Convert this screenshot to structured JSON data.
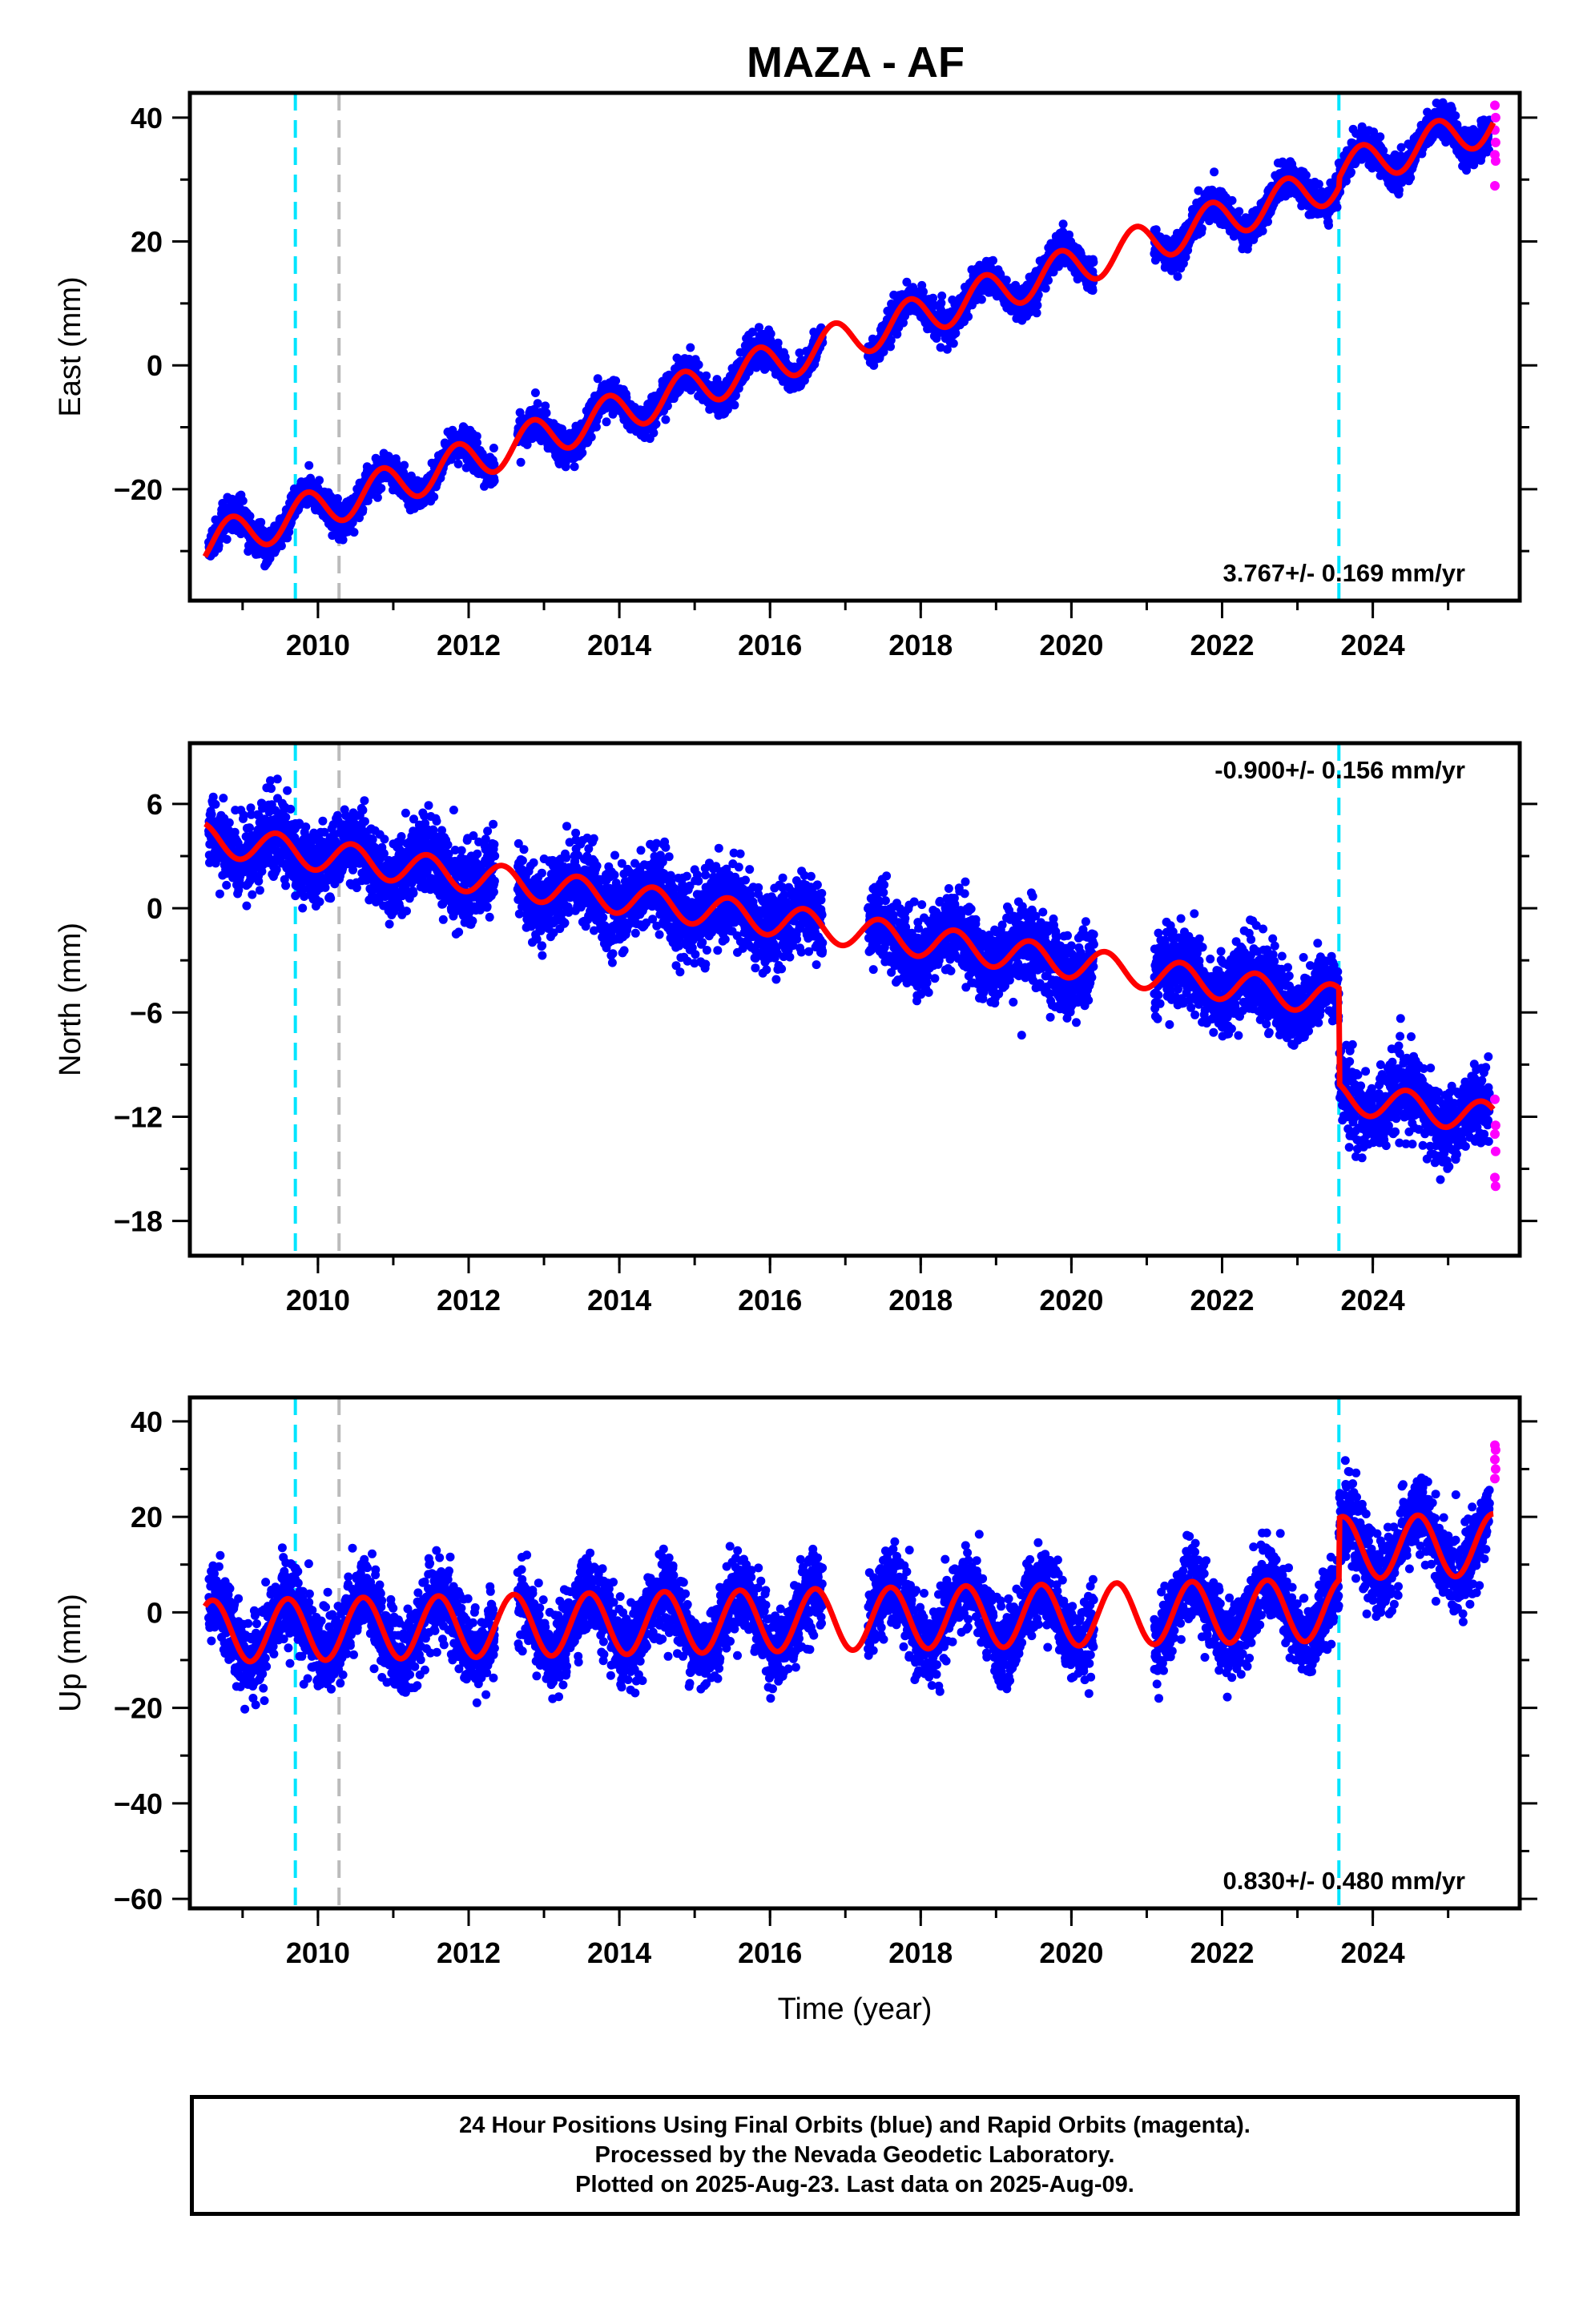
{
  "title": "MAZA - AF",
  "colors": {
    "final_orbits": "#0000ff",
    "rapid_orbits": "#ff00ff",
    "model": "#ff0000",
    "event_cyan": "#00e5ff",
    "event_gray": "#bbbbbb"
  },
  "chart_data": [
    {
      "type": "scatter",
      "name": "east",
      "ylabel": "East (mm)",
      "xlabel": "",
      "xlim": [
        2008.3,
        2025.95
      ],
      "ylim": [
        -38,
        44
      ],
      "yticks": [
        -20,
        0,
        20,
        40
      ],
      "xticks": [
        2010,
        2012,
        2014,
        2016,
        2018,
        2020,
        2022,
        2024
      ],
      "velocity_label": "3.767+/- 0.169 mm/yr",
      "velocity_position": "bottom-right",
      "event_lines": [
        {
          "x": 2009.7,
          "color": "cyan"
        },
        {
          "x": 2010.28,
          "color": "gray"
        },
        {
          "x": 2023.55,
          "color": "cyan"
        }
      ],
      "model": {
        "x0": 2008.5,
        "x1": 2025.6,
        "y_start": -29,
        "trend": 3.9,
        "annual_amp": 3.2,
        "phase": -0.1,
        "offsets": [
          {
            "x": 2023.55,
            "dy": 1.5
          }
        ]
      },
      "gaps": [
        [
          2012.35,
          2012.65
        ],
        [
          2016.7,
          2017.3
        ],
        [
          2020.3,
          2021.1
        ]
      ],
      "scatter_noise": 1.3,
      "rapid_values": [
        42,
        40,
        38,
        36,
        34,
        33,
        29
      ]
    },
    {
      "type": "scatter",
      "name": "north",
      "ylabel": "North (mm)",
      "xlabel": "",
      "xlim": [
        2008.3,
        2025.95
      ],
      "ylim": [
        -20,
        9.5
      ],
      "yticks": [
        -18,
        -12,
        -6,
        0,
        6
      ],
      "xticks": [
        2010,
        2012,
        2014,
        2016,
        2018,
        2020,
        2022,
        2024
      ],
      "velocity_label": "-0.900+/- 0.156 mm/yr",
      "velocity_position": "top-right",
      "event_lines": [
        {
          "x": 2009.7,
          "color": "cyan"
        },
        {
          "x": 2010.28,
          "color": "gray"
        },
        {
          "x": 2023.55,
          "color": "cyan"
        }
      ],
      "model": {
        "x0": 2008.5,
        "x1": 2025.6,
        "y_start": 4.0,
        "trend": -0.62,
        "annual_amp": 0.9,
        "phase": 0.3,
        "offsets": [
          {
            "x": 2023.55,
            "dy": -5.5
          }
        ]
      },
      "gaps": [
        [
          2012.35,
          2012.65
        ],
        [
          2016.7,
          2017.3
        ],
        [
          2020.3,
          2021.1
        ]
      ],
      "scatter_noise": 1.1,
      "rapid_values": [
        -11,
        -12.5,
        -13,
        -14,
        -15.5,
        -16
      ]
    },
    {
      "type": "scatter",
      "name": "up",
      "ylabel": "Up (mm)",
      "xlabel": "Time (year)",
      "xlim": [
        2008.3,
        2025.95
      ],
      "ylim": [
        -62,
        45
      ],
      "yticks": [
        -60,
        -40,
        -20,
        0,
        20,
        40
      ],
      "xticks": [
        2010,
        2012,
        2014,
        2016,
        2018,
        2020,
        2022,
        2024
      ],
      "velocity_label": "0.830+/- 0.480 mm/yr",
      "velocity_position": "bottom-right",
      "event_lines": [
        {
          "x": 2009.7,
          "color": "cyan"
        },
        {
          "x": 2010.28,
          "color": "gray"
        },
        {
          "x": 2023.55,
          "color": "cyan"
        }
      ],
      "model": {
        "x0": 2008.5,
        "x1": 2025.6,
        "y_start": -4,
        "trend": 0.3,
        "annual_amp": 6.5,
        "phase": 0.15,
        "offsets": [
          {
            "x": 2023.55,
            "dy": 13
          }
        ]
      },
      "gaps": [
        [
          2012.35,
          2012.65
        ],
        [
          2016.7,
          2017.3
        ],
        [
          2020.3,
          2021.1
        ]
      ],
      "scatter_noise": 4.0,
      "rapid_values": [
        35,
        34,
        32,
        30,
        28
      ]
    }
  ],
  "footer": {
    "line1": "24 Hour Positions Using Final Orbits (blue) and Rapid Orbits (magenta).",
    "line2": "Processed by the Nevada Geodetic Laboratory.",
    "line3": "Plotted on 2025-Aug-23. Last data on 2025-Aug-09."
  }
}
